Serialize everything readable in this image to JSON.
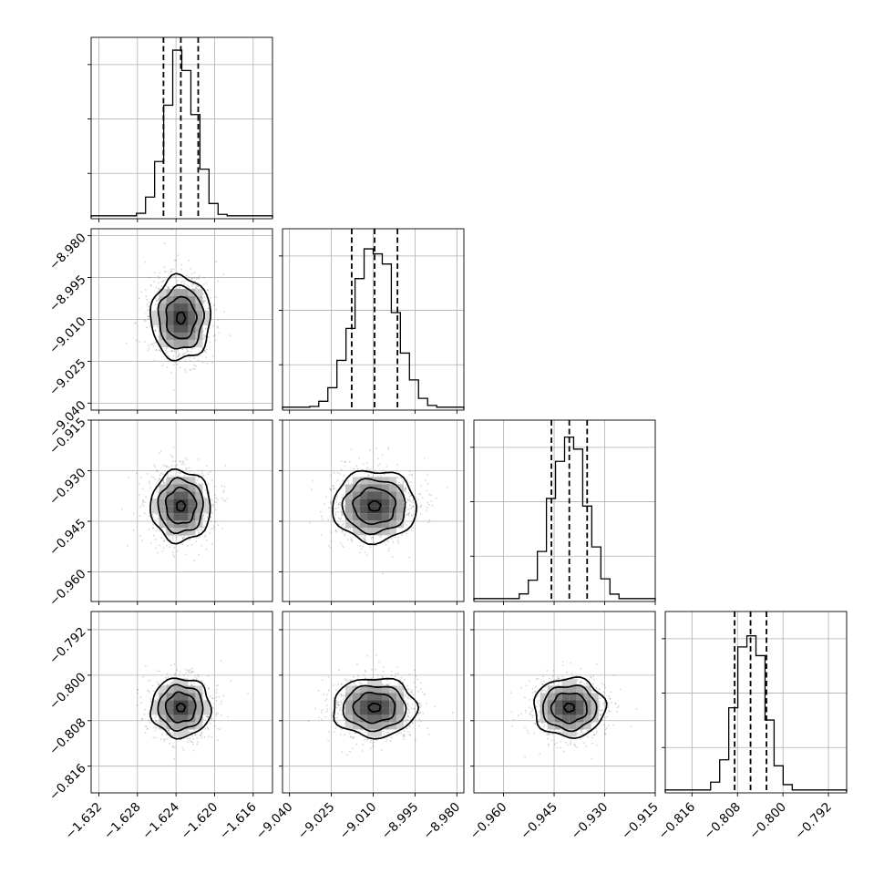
{
  "chart_data": {
    "type": "corner",
    "parameters": [
      {
        "mean": -1.6235,
        "sd": 0.00155,
        "range": [
          -1.6328,
          -1.614
        ],
        "ticks": [
          "−1.632",
          "−1.628",
          "−1.624",
          "−1.620",
          "−1.616"
        ],
        "tick_values": [
          -1.632,
          -1.628,
          -1.624,
          -1.62,
          -1.616
        ],
        "quantiles": [
          -1.6253,
          -1.6235,
          -1.6217
        ]
      },
      {
        "mean": -9.0095,
        "sd": 0.0075,
        "range": [
          -9.0425,
          -8.9775
        ],
        "ticks": [
          "−9.040",
          "−9.025",
          "−9.010",
          "−8.995",
          "−8.980"
        ],
        "tick_values": [
          -9.04,
          -9.025,
          -9.01,
          -8.995,
          -8.98
        ],
        "quantiles": [
          -9.0177,
          -9.0095,
          -9.0013
        ]
      },
      {
        "mean": -0.9405,
        "sd": 0.0053,
        "range": [
          -0.9688,
          -0.915
        ],
        "ticks": [
          "−0.960",
          "−0.945",
          "−0.930",
          "−0.915"
        ],
        "tick_values": [
          -0.96,
          -0.945,
          -0.93,
          -0.915
        ],
        "quantiles": [
          -0.9458,
          -0.9405,
          -0.9352
        ]
      },
      {
        "mean": -0.8057,
        "sd": 0.0026,
        "range": [
          -0.8207,
          -0.7888
        ],
        "ticks": [
          "−0.816",
          "−0.808",
          "−0.800",
          "−0.792"
        ],
        "tick_values": [
          -0.816,
          -0.808,
          -0.8,
          -0.792
        ],
        "quantiles": [
          -0.8085,
          -0.8057,
          -0.8029
        ]
      }
    ],
    "histogram_bins": 20,
    "diagonal": "step histogram with dashed lines at the 16th, 50th and 84th percentiles",
    "lower_triangle": "2-D sample density: scatter points, shaded density grid and 4 contour levels",
    "grid": true,
    "colors": {
      "line": "#000000",
      "grid": "#b0b0b0",
      "background": "#ffffff"
    }
  }
}
